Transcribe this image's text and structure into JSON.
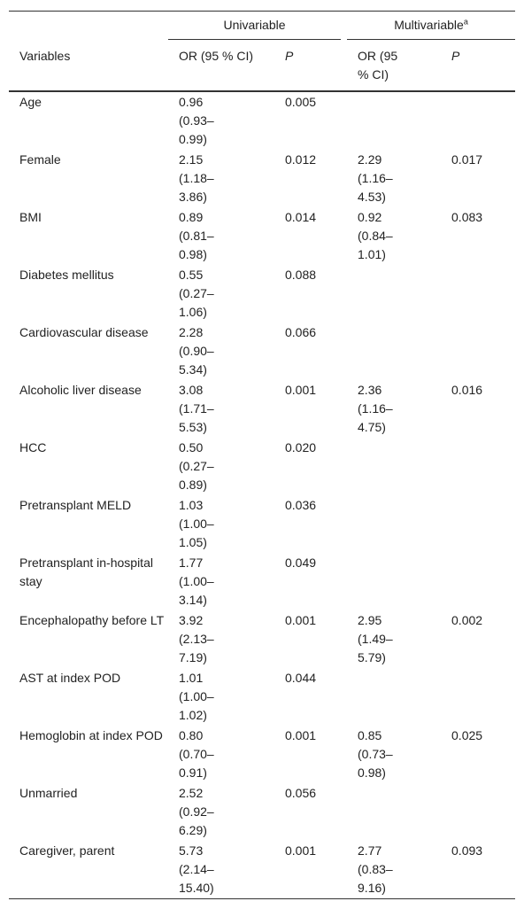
{
  "table": {
    "group_headers": [
      {
        "text": "Univariable"
      },
      {
        "text": "Multivariable",
        "superscript": "a"
      }
    ],
    "columns": [
      "Variables",
      "OR (95 % CI)",
      "P",
      "OR (95 % CI)",
      "P"
    ],
    "rows": [
      [
        "Age",
        "0.96 (0.93–0.99)",
        "0.005",
        null,
        null
      ],
      [
        "Female",
        "2.15 (1.18–3.86)",
        "0.012",
        "2.29 (1.16–4.53)",
        "0.017"
      ],
      [
        "BMI",
        "0.89 (0.81–0.98)",
        "0.014",
        "0.92 (0.84–1.01)",
        "0.083"
      ],
      [
        "Diabetes mellitus",
        "0.55 (0.27–1.06)",
        "0.088",
        null,
        null
      ],
      [
        "Cardiovascular disease",
        "2.28 (0.90–5.34)",
        "0.066",
        null,
        null
      ],
      [
        "Alcoholic liver disease",
        "3.08 (1.71–5.53)",
        "0.001",
        "2.36 (1.16–4.75)",
        "0.016"
      ],
      [
        "HCC",
        "0.50 (0.27–0.89)",
        "0.020",
        null,
        null
      ],
      [
        "Pretransplant MELD",
        "1.03 (1.00–1.05)",
        "0.036",
        null,
        null
      ],
      [
        "Pretransplant in-hospital stay",
        "1.77 (1.00–3.14)",
        "0.049",
        null,
        null
      ],
      [
        "Encephalopathy before LT",
        "3.92 (2.13–7.19)",
        "0.001",
        "2.95 (1.49–5.79)",
        "0.002"
      ],
      [
        "AST at index POD",
        "1.01 (1.00–1.02)",
        "0.044",
        null,
        null
      ],
      [
        "Hemoglobin at index POD",
        "0.80 (0.70–0.91)",
        "0.001",
        "0.85 (0.73–0.98)",
        "0.025"
      ],
      [
        "Unmarried",
        "2.52 (0.92–6.29)",
        "0.056",
        null,
        null
      ],
      [
        "Caregiver, parent",
        "5.73 (2.14–15.40)",
        "0.001",
        "2.77 (0.83–9.16)",
        "0.093"
      ]
    ]
  }
}
